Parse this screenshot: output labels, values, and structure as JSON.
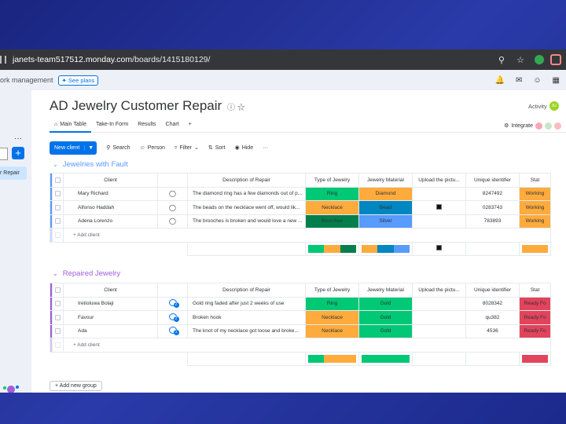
{
  "browser": {
    "url_domain": "janets-team517512.monday.com",
    "url_path": "/boards/1415180129/"
  },
  "topbar": {
    "product": "ork management",
    "see_plans": "See plans"
  },
  "sidebar": {
    "dots": "···",
    "add": "+",
    "active_item": "r Repair"
  },
  "board": {
    "title": "AD Jewelry Customer Repair",
    "activity_label": "Activity",
    "avatar_initials": "JU",
    "tabs": [
      "Main Table",
      "Take-In Form",
      "Results",
      "Chart",
      "+"
    ],
    "integrate_label": "Integrate"
  },
  "toolbar": {
    "new_item": "New client",
    "search": "Search",
    "person": "Person",
    "filter": "Filter",
    "sort": "Sort",
    "hide": "Hide",
    "more": "···"
  },
  "columns": {
    "client": "Client",
    "description": "Description of Repair",
    "type": "Type of Jewelry",
    "material": "Jewelry Material",
    "upload": "Upload the pictu...",
    "uid": "Unique identifier",
    "status": "Stat"
  },
  "groups": [
    {
      "name": "Jewelries with Fault",
      "color": "#579bfc",
      "add_label": "+ Add client",
      "rows": [
        {
          "client": "Mary Richard",
          "description": "The diamond ring has a few diamonds out of p...",
          "type": "Ring",
          "type_color": "#00c875",
          "material": "Diamond",
          "material_color": "#fdab3d",
          "uid": "8247492",
          "status": "Working",
          "status_color": "#fdab3d"
        },
        {
          "client": "Alfonso Haddah",
          "description": "The beads on the necklace went off, would lik...",
          "type": "Necklace",
          "type_color": "#fdab3d",
          "material": "Bead",
          "material_color": "#0086c0",
          "uid": "0283743",
          "status": "Working",
          "status_color": "#fdab3d"
        },
        {
          "client": "Adena Lorenzo",
          "description": "The brooches is broken and would love a new ...",
          "type": "Brooches",
          "type_color": "#037f4c",
          "material": "Silver",
          "material_color": "#579bfc",
          "uid": "783893",
          "status": "Working",
          "status_color": "#fdab3d"
        }
      ]
    },
    {
      "name": "Repaired Jewelry",
      "color": "#a25ddc",
      "add_label": "+ Add client",
      "rows": [
        {
          "client": "Iretioluwa Bolaji",
          "description": "Gold ring faded after just 2 weeks of use",
          "type": "Ring",
          "type_color": "#00c875",
          "material": "Gold",
          "material_color": "#00c875",
          "uid": "8028342",
          "status": "Ready Fo",
          "status_color": "#e2445c",
          "conv_count": "2"
        },
        {
          "client": "Favour",
          "description": "Broken hook",
          "type": "Necklace",
          "type_color": "#fdab3d",
          "material": "Gold",
          "material_color": "#00c875",
          "uid": "qu382",
          "status": "Ready Fo",
          "status_color": "#e2445c",
          "conv_count": "2"
        },
        {
          "client": "Ada",
          "description": "The knot of my necklace got loose and broke...",
          "type": "Necklace",
          "type_color": "#fdab3d",
          "material": "Gold",
          "material_color": "#00c875",
          "uid": "4536",
          "status": "Ready Fo",
          "status_color": "#e2445c",
          "conv_count": "1"
        }
      ]
    }
  ],
  "add_group": "+ Add new group"
}
